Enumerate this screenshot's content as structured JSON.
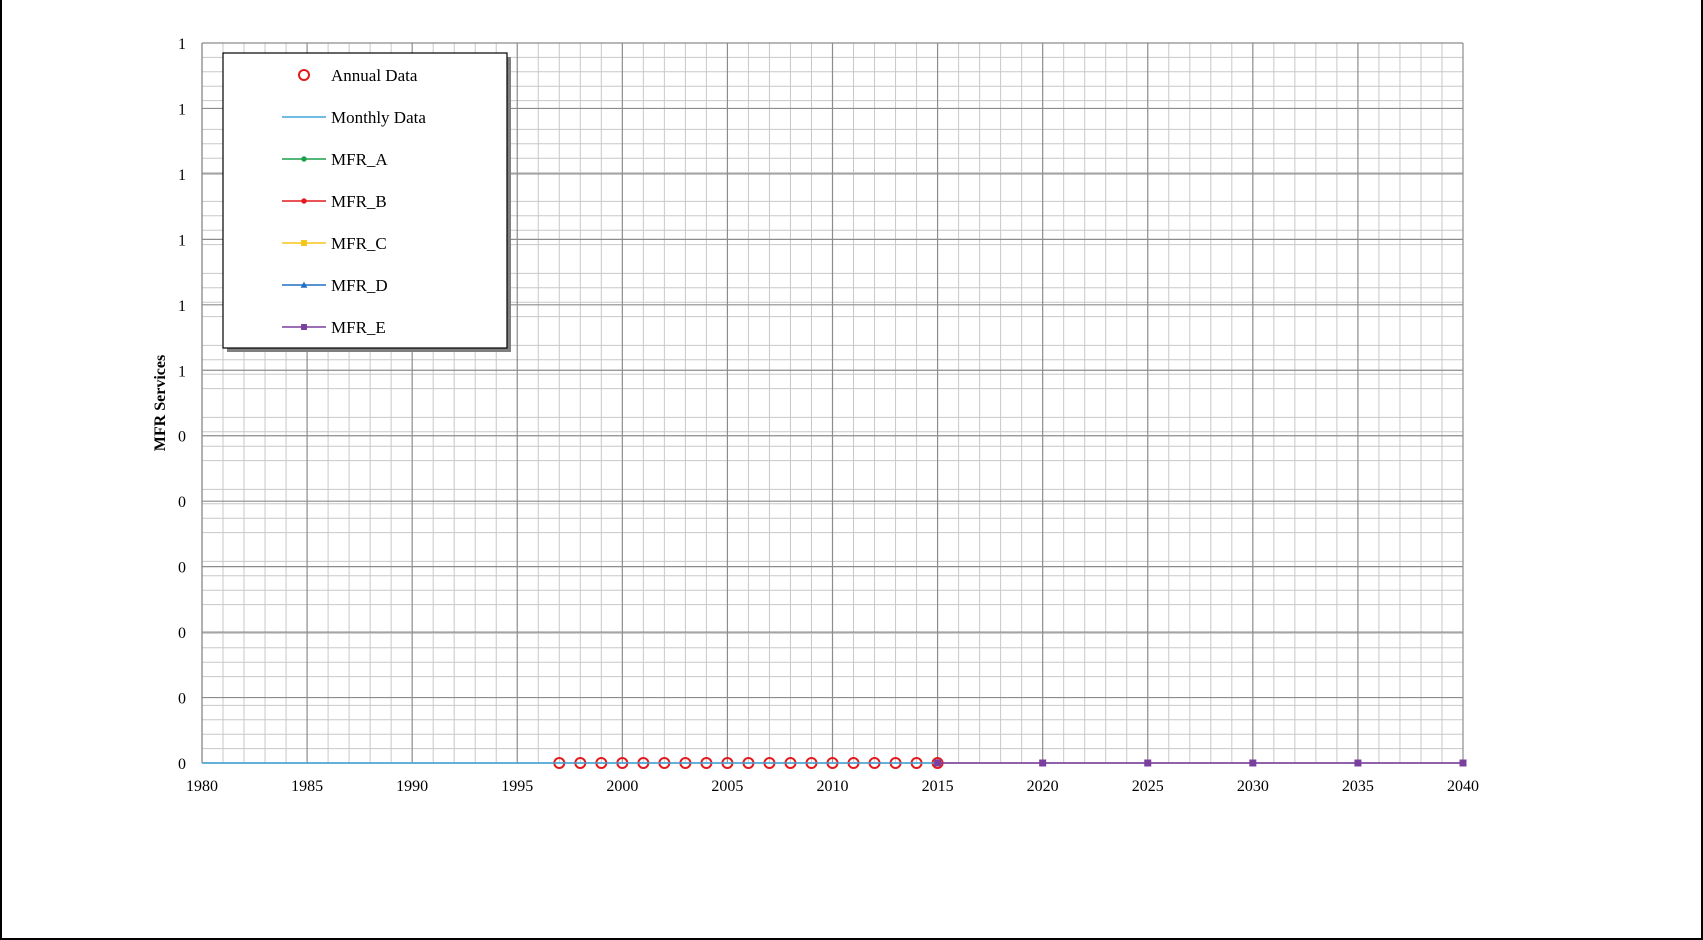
{
  "chart_data": {
    "type": "scatter",
    "title": "",
    "xlabel": "",
    "ylabel": "MFR Services",
    "xlim": [
      1980,
      2040
    ],
    "ylim": [
      0,
      1
    ],
    "x_ticks": [
      "1980",
      "1985",
      "1990",
      "1995",
      "2000",
      "2005",
      "2010",
      "2015",
      "2020",
      "2025",
      "2030",
      "2035",
      "2040"
    ],
    "y_ticks": [
      "0",
      "0",
      "0",
      "0",
      "0",
      "0",
      "1",
      "1",
      "1",
      "1",
      "1",
      "1"
    ],
    "grid": true,
    "legend_position": "top-left",
    "series": [
      {
        "name": "Annual Data",
        "style": "hollow-circle",
        "color": "#e31a1c",
        "x": [
          1997,
          1998,
          1999,
          2000,
          2001,
          2002,
          2003,
          2004,
          2005,
          2006,
          2007,
          2008,
          2009,
          2010,
          2011,
          2012,
          2013,
          2014,
          2015
        ],
        "y": [
          0,
          0,
          0,
          0,
          0,
          0,
          0,
          0,
          0,
          0,
          0,
          0,
          0,
          0,
          0,
          0,
          0,
          0,
          0
        ]
      },
      {
        "name": "Monthly Data",
        "style": "line",
        "color": "#41a6dc",
        "x": [
          1980,
          2015
        ],
        "y": [
          0,
          0
        ]
      },
      {
        "name": "MFR_A",
        "style": "line-dot",
        "color": "#1aa04a",
        "x": [
          2015
        ],
        "y": [
          0
        ]
      },
      {
        "name": "MFR_B",
        "style": "line-dot",
        "color": "#e31a1c",
        "x": [
          2015
        ],
        "y": [
          0
        ]
      },
      {
        "name": "MFR_C",
        "style": "line-square",
        "color": "#f5c518",
        "x": [
          2015
        ],
        "y": [
          0
        ]
      },
      {
        "name": "MFR_D",
        "style": "line-triangle",
        "color": "#1f6fc5",
        "x": [
          2015
        ],
        "y": [
          0
        ]
      },
      {
        "name": "MFR_E",
        "style": "line-square",
        "color": "#7b3fa0",
        "x": [
          2015,
          2020,
          2025,
          2030,
          2035,
          2040
        ],
        "y": [
          0,
          0,
          0,
          0,
          0,
          0
        ]
      }
    ]
  }
}
